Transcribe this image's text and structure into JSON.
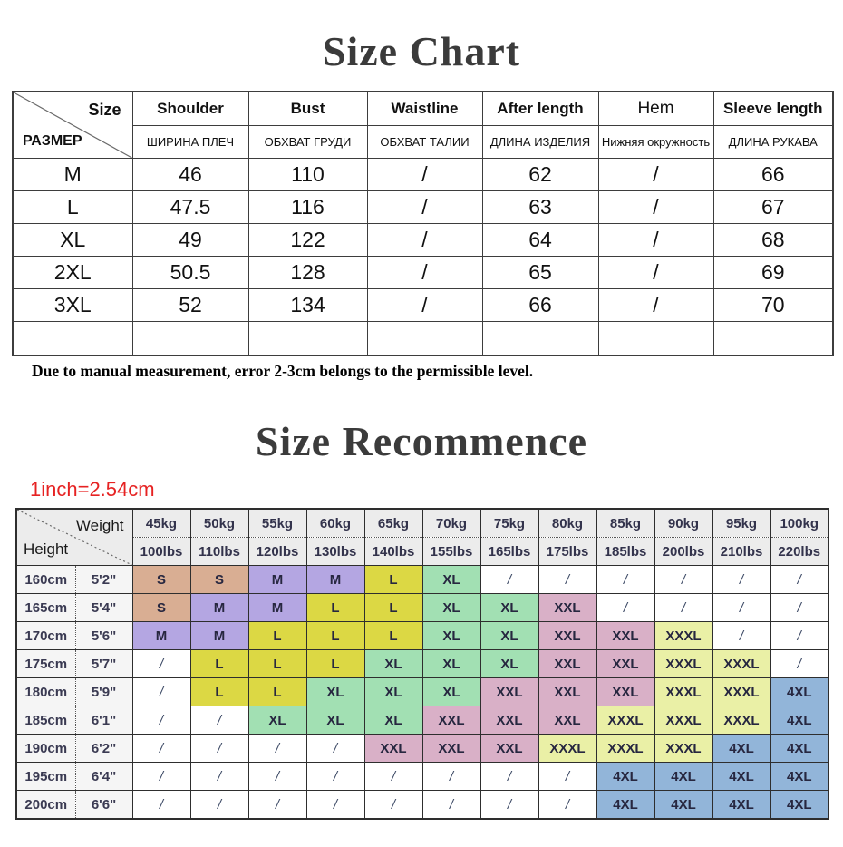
{
  "page": {
    "background": "#ffffff"
  },
  "size_chart": {
    "title": "Size Chart",
    "corner_top": "Size",
    "corner_bottom": "РАЗМЕР",
    "columns": [
      {
        "en": "Shoulder",
        "ru": "ШИРИНА ПЛЕЧ"
      },
      {
        "en": "Bust",
        "ru": "ОБХВАТ ГРУДИ"
      },
      {
        "en": "Waistline",
        "ru": "ОБХВАТ ТАЛИИ"
      },
      {
        "en": "After length",
        "ru": "ДЛИНА ИЗДЕЛИЯ"
      },
      {
        "en": "Hem",
        "ru": "Нижняя окружность"
      },
      {
        "en": "Sleeve length",
        "ru": "ДЛИНА РУКАВА"
      }
    ],
    "rows": [
      {
        "size": "M",
        "values": [
          "46",
          "110",
          "/",
          "62",
          "/",
          "66"
        ]
      },
      {
        "size": "L",
        "values": [
          "47.5",
          "116",
          "/",
          "63",
          "/",
          "67"
        ]
      },
      {
        "size": "XL",
        "values": [
          "49",
          "122",
          "/",
          "64",
          "/",
          "68"
        ]
      },
      {
        "size": "2XL",
        "values": [
          "50.5",
          "128",
          "/",
          "65",
          "/",
          "69"
        ]
      },
      {
        "size": "3XL",
        "values": [
          "52",
          "134",
          "/",
          "66",
          "/",
          "70"
        ]
      },
      {
        "size": "",
        "values": [
          "",
          "",
          "",
          "",
          "",
          ""
        ]
      }
    ],
    "note": "Due to manual measurement, error 2-3cm belongs to the permissible level."
  },
  "size_recommence": {
    "title": "Size Recommence",
    "conversion_note": "1inch=2.54cm",
    "conversion_color": "#e62222",
    "corner_top": "Weight",
    "corner_bottom": "Height",
    "weight_kg": [
      "45kg",
      "50kg",
      "55kg",
      "60kg",
      "65kg",
      "70kg",
      "75kg",
      "80kg",
      "85kg",
      "90kg",
      "95kg",
      "100kg"
    ],
    "weight_lbs": [
      "100lbs",
      "110lbs",
      "120lbs",
      "130lbs",
      "140lbs",
      "155lbs",
      "165lbs",
      "175lbs",
      "185lbs",
      "200lbs",
      "210lbs",
      "220lbs"
    ],
    "rows": [
      {
        "cm": "160cm",
        "ft": "5'2\"",
        "sizes": [
          "S",
          "S",
          "M",
          "M",
          "L",
          "XL",
          "/",
          "/",
          "/",
          "/",
          "/",
          "/"
        ]
      },
      {
        "cm": "165cm",
        "ft": "5'4\"",
        "sizes": [
          "S",
          "M",
          "M",
          "L",
          "L",
          "XL",
          "XL",
          "XXL",
          "/",
          "/",
          "/",
          "/"
        ]
      },
      {
        "cm": "170cm",
        "ft": "5'6\"",
        "sizes": [
          "M",
          "M",
          "L",
          "L",
          "L",
          "XL",
          "XL",
          "XXL",
          "XXL",
          "XXXL",
          "/",
          "/"
        ]
      },
      {
        "cm": "175cm",
        "ft": "5'7\"",
        "sizes": [
          "/",
          "L",
          "L",
          "L",
          "XL",
          "XL",
          "XL",
          "XXL",
          "XXL",
          "XXXL",
          "XXXL",
          "/"
        ]
      },
      {
        "cm": "180cm",
        "ft": "5'9\"",
        "sizes": [
          "/",
          "L",
          "L",
          "XL",
          "XL",
          "XL",
          "XXL",
          "XXL",
          "XXL",
          "XXXL",
          "XXXL",
          "4XL"
        ]
      },
      {
        "cm": "185cm",
        "ft": "6'1\"",
        "sizes": [
          "/",
          "/",
          "XL",
          "XL",
          "XL",
          "XXL",
          "XXL",
          "XXL",
          "XXXL",
          "XXXL",
          "XXXL",
          "4XL"
        ]
      },
      {
        "cm": "190cm",
        "ft": "6'2\"",
        "sizes": [
          "/",
          "/",
          "/",
          "/",
          "XXL",
          "XXL",
          "XXL",
          "XXXL",
          "XXXL",
          "XXXL",
          "4XL",
          "4XL"
        ]
      },
      {
        "cm": "195cm",
        "ft": "6'4\"",
        "sizes": [
          "/",
          "/",
          "/",
          "/",
          "/",
          "/",
          "/",
          "/",
          "4XL",
          "4XL",
          "4XL",
          "4XL"
        ]
      },
      {
        "cm": "200cm",
        "ft": "6'6\"",
        "sizes": [
          "/",
          "/",
          "/",
          "/",
          "/",
          "/",
          "/",
          "/",
          "4XL",
          "4XL",
          "4XL",
          "4XL"
        ]
      }
    ],
    "size_colors": {
      "S": "#d9ae93",
      "M": "#b4a6e2",
      "L": "#dcd844",
      "XL": "#a2e0b3",
      "XXL": "#d9b0c7",
      "XXXL": "#eaf0a6",
      "4XL": "#92b5d9",
      "/": "#ffffff"
    }
  }
}
